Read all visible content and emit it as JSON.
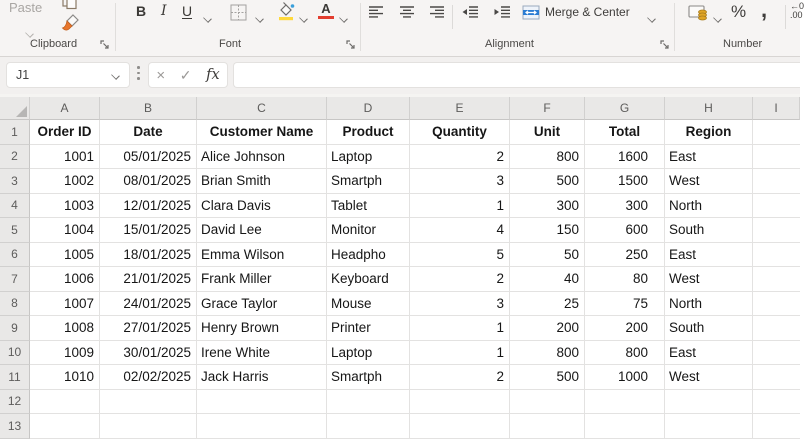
{
  "ribbon": {
    "clipboard": {
      "label": "Clipboard",
      "paste_label": "Paste"
    },
    "font": {
      "label": "Font",
      "bold": "B",
      "italic": "I",
      "underline": "U"
    },
    "alignment": {
      "label": "Alignment",
      "merge_center_label": "Merge & Center"
    },
    "number": {
      "label": "Number",
      "percent": "%",
      "comma": ",",
      "decimal": ".00"
    }
  },
  "formula_bar": {
    "name_box_value": "J1",
    "cancel_glyph": "×",
    "enter_glyph": "✓",
    "fx_label": "fx",
    "formula_value": ""
  },
  "sheet": {
    "column_letters": [
      "A",
      "B",
      "C",
      "D",
      "E",
      "F",
      "G",
      "H",
      "I"
    ],
    "row_numbers": [
      "1",
      "2",
      "3",
      "4",
      "5",
      "6",
      "7",
      "8",
      "9",
      "10",
      "11",
      "12",
      "13"
    ],
    "header_row": [
      "Order ID",
      "Date",
      "Customer Name",
      "Product",
      "Quantity",
      "Unit",
      "Total",
      "Region"
    ],
    "data_rows": [
      [
        "1001",
        "05/01/2025",
        "Alice Johnson",
        "Laptop",
        "2",
        "800",
        "1600",
        "East"
      ],
      [
        "1002",
        "08/01/2025",
        "Brian Smith",
        "Smartph",
        "3",
        "500",
        "1500",
        "West"
      ],
      [
        "1003",
        "12/01/2025",
        "Clara Davis",
        "Tablet",
        "1",
        "300",
        "300",
        "North"
      ],
      [
        "1004",
        "15/01/2025",
        "David Lee",
        "Monitor",
        "4",
        "150",
        "600",
        "South"
      ],
      [
        "1005",
        "18/01/2025",
        "Emma Wilson",
        "Headpho",
        "5",
        "50",
        "250",
        "East"
      ],
      [
        "1006",
        "21/01/2025",
        "Frank Miller",
        "Keyboard",
        "2",
        "40",
        "80",
        "West"
      ],
      [
        "1007",
        "24/01/2025",
        "Grace Taylor",
        "Mouse",
        "3",
        "25",
        "75",
        "North"
      ],
      [
        "1008",
        "27/01/2025",
        "Henry Brown",
        "Printer",
        "1",
        "200",
        "200",
        "South"
      ],
      [
        "1009",
        "30/01/2025",
        "Irene White",
        "Laptop",
        "1",
        "800",
        "800",
        "East"
      ],
      [
        "1010",
        "02/02/2025",
        "Jack Harris",
        "Smartph",
        "2",
        "500",
        "1000",
        "West"
      ]
    ]
  },
  "colors": {
    "fill_accent": "#ffd93b",
    "font_color_accent": "#e23d2e",
    "merge_icon_blue": "#2b7cd3",
    "painter_orange": "#e8762c",
    "coin_gold": "#e0a526",
    "header_bg": "#e9e8e7",
    "ribbon_bg": "#f6f4f3"
  }
}
